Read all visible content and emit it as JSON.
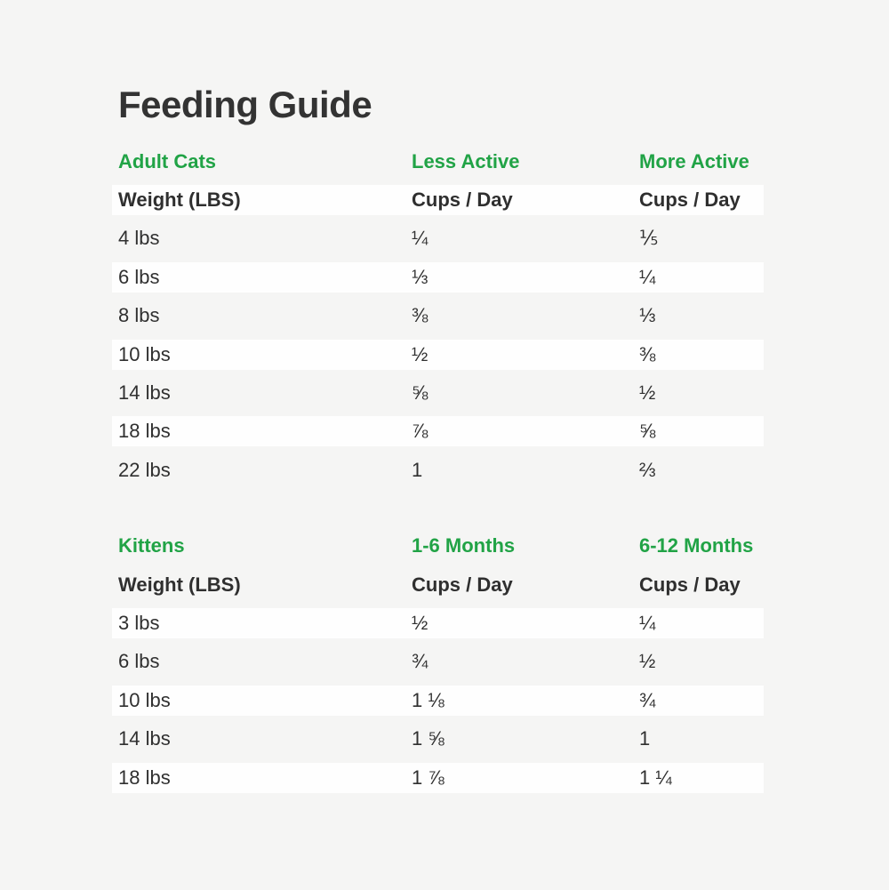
{
  "title": "Feeding Guide",
  "colors": {
    "accent_green": "#21a346",
    "text_dark": "#333333",
    "background": "#f5f5f4",
    "row_white": "#fefefe"
  },
  "chart_data": [
    {
      "type": "table",
      "section": "Adult Cats",
      "column_groups": [
        "Adult Cats",
        "Less Active",
        "More Active"
      ],
      "columns": [
        "Weight (LBS)",
        "Cups / Day",
        "Cups / Day"
      ],
      "rows": [
        [
          "4 lbs",
          "¼",
          "⅕"
        ],
        [
          "6 lbs",
          "⅓",
          "¼"
        ],
        [
          "8 lbs",
          "⅜",
          "⅓"
        ],
        [
          "10 lbs",
          "½",
          "⅜"
        ],
        [
          "14 lbs",
          "⅝",
          "½"
        ],
        [
          "18 lbs",
          "⅞",
          "⅝"
        ],
        [
          "22 lbs",
          "1",
          "⅔"
        ]
      ]
    },
    {
      "type": "table",
      "section": "Kittens",
      "column_groups": [
        "Kittens",
        "1-6 Months",
        "6-12 Months"
      ],
      "columns": [
        "Weight (LBS)",
        "Cups / Day",
        "Cups / Day"
      ],
      "rows": [
        [
          "3 lbs",
          "½",
          "¼"
        ],
        [
          "6 lbs",
          "¾",
          "½"
        ],
        [
          "10 lbs",
          "1 ⅛",
          "¾"
        ],
        [
          "14 lbs",
          "1 ⅝",
          "1"
        ],
        [
          "18 lbs",
          "1 ⅞",
          "1 ¼"
        ]
      ]
    }
  ]
}
